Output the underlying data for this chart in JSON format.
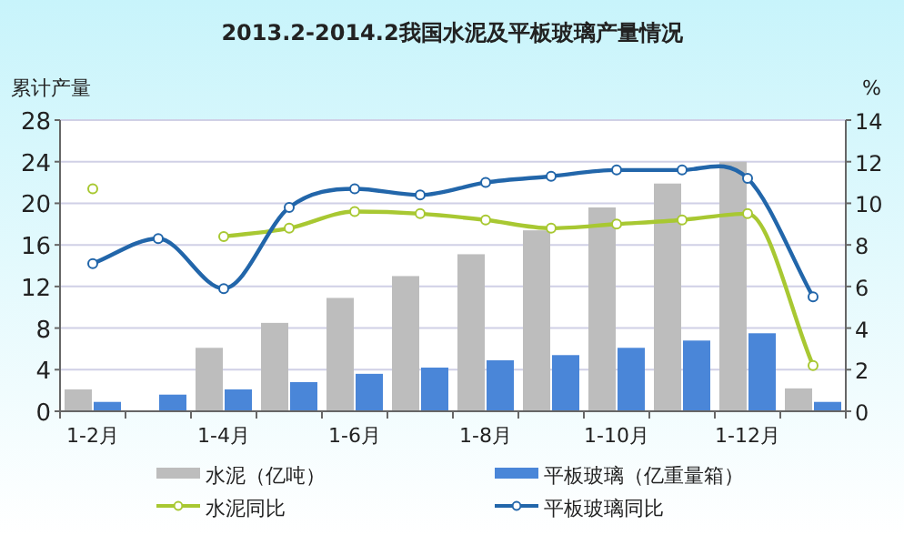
{
  "chart_data": {
    "type": "bar",
    "title": "2013.2-2014.2我国水泥及平板玻璃产量情况",
    "ylabel": "累计产量",
    "y2label": "%",
    "categories": [
      "1-2月",
      null,
      "1-4月",
      null,
      "1-6月",
      null,
      "1-8月",
      null,
      "1-10月",
      null,
      "1-12月",
      null
    ],
    "series": [
      {
        "name": "水泥（亿吨）",
        "color": "#bdbdbd",
        "values": [
          2.1,
          null,
          6.1,
          8.5,
          10.9,
          13.0,
          15.1,
          17.4,
          19.6,
          21.9,
          24.0,
          2.2
        ]
      },
      {
        "name": "平板玻璃（亿重量箱）",
        "color": "#4a86d8",
        "values": [
          0.9,
          1.6,
          2.1,
          2.8,
          3.6,
          4.2,
          4.9,
          5.4,
          6.1,
          6.8,
          7.5,
          0.9
        ]
      },
      {
        "name": "水泥同比",
        "type": "line",
        "axis": "y2",
        "marker": "circle",
        "color": "#a8c832",
        "values": [
          10.7,
          null,
          8.4,
          8.8,
          9.6,
          9.5,
          9.2,
          8.8,
          9.0,
          9.2,
          9.5,
          2.2
        ]
      },
      {
        "name": "平板玻璃同比",
        "type": "line",
        "axis": "y2",
        "marker": "circle",
        "color": "#2266aa",
        "values": [
          7.1,
          8.3,
          5.9,
          9.8,
          10.7,
          10.4,
          11.0,
          11.3,
          11.6,
          11.6,
          11.2,
          5.5
        ]
      }
    ],
    "ylim": [
      0,
      28
    ],
    "yticks": [
      0,
      4,
      8,
      12,
      16,
      20,
      24,
      28
    ],
    "y2lim": [
      0,
      14
    ],
    "y2ticks": [
      0,
      2,
      4,
      6,
      8,
      10,
      12,
      14
    ],
    "grid": "y",
    "legend": "bottom"
  }
}
